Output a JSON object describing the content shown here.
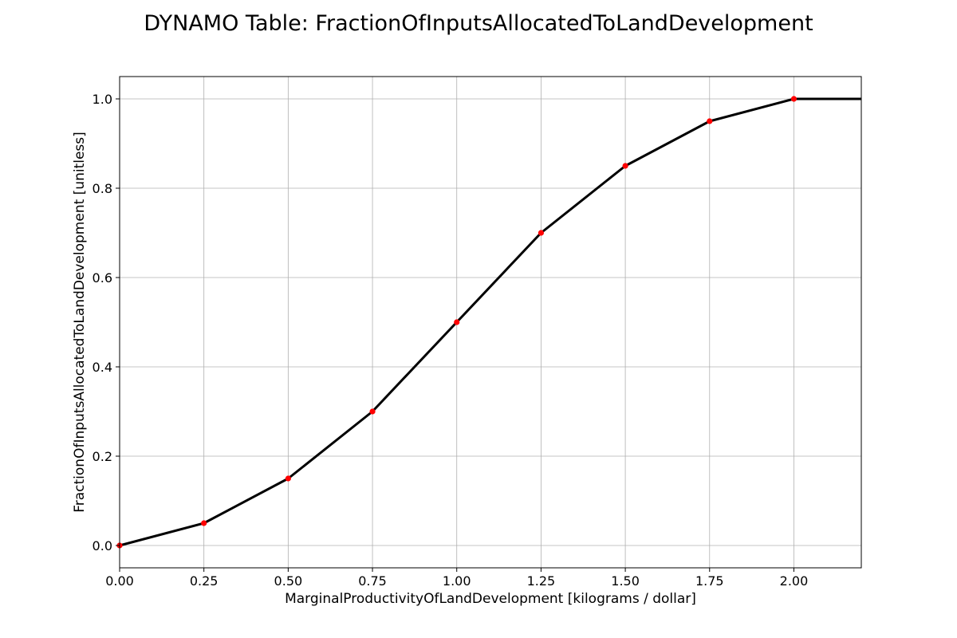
{
  "chart_data": {
    "type": "line",
    "title": "DYNAMO Table: FractionOfInputsAllocatedToLandDevelopment",
    "xlabel": "MarginalProductivityOfLandDevelopment [kilograms / dollar]",
    "ylabel": "FractionOfInputsAllocatedToLandDevelopment [unitless]",
    "xlim": [
      0,
      2.2
    ],
    "ylim": [
      -0.05,
      1.05
    ],
    "xticks": [
      "0.00",
      "0.25",
      "0.50",
      "0.75",
      "1.00",
      "1.25",
      "1.50",
      "1.75",
      "2.00"
    ],
    "yticks": [
      "0.0",
      "0.2",
      "0.4",
      "0.6",
      "0.8",
      "1.0"
    ],
    "grid": true,
    "series": [
      {
        "x": [
          0,
          0.25,
          0.5,
          0.75,
          1.0,
          1.25,
          1.5,
          1.75,
          2.0
        ],
        "y": [
          0,
          0.05,
          0.15,
          0.3,
          0.5,
          0.7,
          0.85,
          0.95,
          1.0
        ],
        "line_color": "#000000",
        "marker_color": "#ff0000"
      }
    ]
  }
}
